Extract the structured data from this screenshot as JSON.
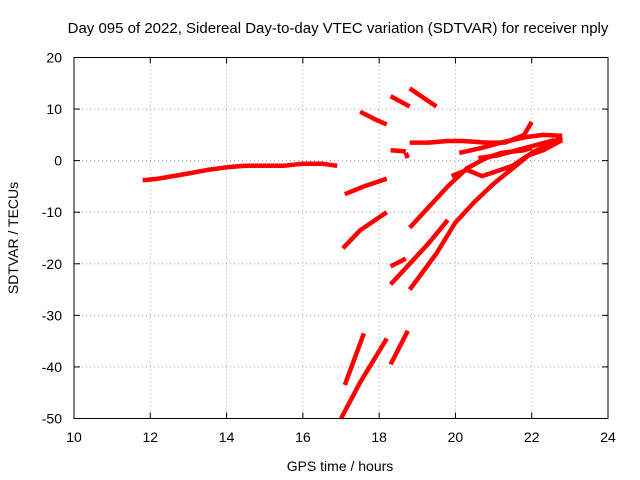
{
  "chart_data": {
    "type": "scatter",
    "title": "Day 095 of 2022, Sidereal Day-to-day VTEC variation (SDTVAR) for receiver nply",
    "xlabel": "GPS time / hours",
    "ylabel": "SDTVAR / TECUs",
    "xlim": [
      10,
      24
    ],
    "ylim": [
      -50,
      20
    ],
    "xticks": [
      "10",
      "12",
      "14",
      "16",
      "18",
      "20",
      "22",
      "24"
    ],
    "yticks": [
      "20",
      "10",
      "0",
      "-10",
      "-20",
      "-30",
      "-40",
      "-50"
    ],
    "grid": true,
    "legend": "none",
    "color": "#ff0000",
    "series": [
      {
        "x": [
          11.8,
          12.2,
          12.6,
          13.0,
          13.5,
          14.0,
          14.5,
          15.0,
          15.5,
          16.0,
          16.5,
          16.9
        ],
        "y": [
          -3.8,
          -3.5,
          -3.0,
          -2.5,
          -1.8,
          -1.3,
          -1.0,
          -1.0,
          -1.0,
          -0.6,
          -0.6,
          -1.0
        ]
      },
      {
        "x": [
          17.1,
          17.6,
          18.2
        ],
        "y": [
          -6.5,
          -5.0,
          -3.5
        ]
      },
      {
        "x": [
          17.05,
          17.5,
          18.2
        ],
        "y": [
          -17.0,
          -13.5,
          -10.0
        ]
      },
      {
        "x": [
          17.5,
          17.9,
          18.2
        ],
        "y": [
          9.5,
          8.0,
          7.0
        ]
      },
      {
        "x": [
          18.3,
          18.8
        ],
        "y": [
          12.5,
          10.5
        ]
      },
      {
        "x": [
          18.8,
          19.5
        ],
        "y": [
          14.0,
          10.5
        ]
      },
      {
        "x": [
          18.3,
          18.7
        ],
        "y": [
          2.0,
          1.8
        ]
      },
      {
        "x": [
          18.7,
          18.75
        ],
        "y": [
          1.5,
          0.5
        ]
      },
      {
        "x": [
          18.3,
          18.7
        ],
        "y": [
          -20.5,
          -19.0
        ]
      },
      {
        "x": [
          18.3,
          18.8,
          19.3,
          19.8
        ],
        "y": [
          -24.0,
          -20.0,
          -16.0,
          -11.5
        ]
      },
      {
        "x": [
          18.8,
          19.3,
          19.8,
          20.3,
          20.8,
          21.2,
          21.8,
          22.0
        ],
        "y": [
          -13.0,
          -9.0,
          -5.0,
          -1.5,
          0.5,
          1.5,
          2.0,
          2.5
        ]
      },
      {
        "x": [
          18.8,
          19.5,
          20.0,
          20.5,
          21.0,
          21.5,
          22.0,
          22.8
        ],
        "y": [
          -25.0,
          -18.0,
          -12.0,
          -8.0,
          -4.5,
          -1.5,
          1.5,
          4.5
        ]
      },
      {
        "x": [
          18.8,
          19.3,
          19.8,
          20.2,
          20.8,
          21.3,
          21.8,
          22.0
        ],
        "y": [
          3.5,
          3.5,
          3.8,
          3.8,
          3.5,
          3.5,
          5.0,
          7.5
        ]
      },
      {
        "x": [
          20.1,
          20.7,
          21.2,
          21.8,
          22.3,
          22.8
        ],
        "y": [
          1.5,
          2.5,
          3.5,
          4.5,
          5.0,
          4.8
        ]
      },
      {
        "x": [
          19.9,
          20.3,
          20.7,
          21.1,
          21.5,
          21.9,
          22.3,
          22.8
        ],
        "y": [
          -3.0,
          -1.8,
          -3.0,
          -2.0,
          -1.0,
          1.0,
          2.0,
          4.0
        ]
      },
      {
        "x": [
          20.6,
          21.1,
          21.6,
          22.1,
          22.6
        ],
        "y": [
          0.5,
          1.0,
          2.0,
          3.0,
          4.0
        ]
      },
      {
        "x": [
          17.1,
          17.6
        ],
        "y": [
          -43.5,
          -33.5
        ]
      },
      {
        "x": [
          17.0,
          17.5,
          18.2
        ],
        "y": [
          -50.0,
          -43.0,
          -34.5
        ]
      },
      {
        "x": [
          18.3,
          18.75
        ],
        "y": [
          -39.5,
          -33.0
        ]
      }
    ]
  }
}
